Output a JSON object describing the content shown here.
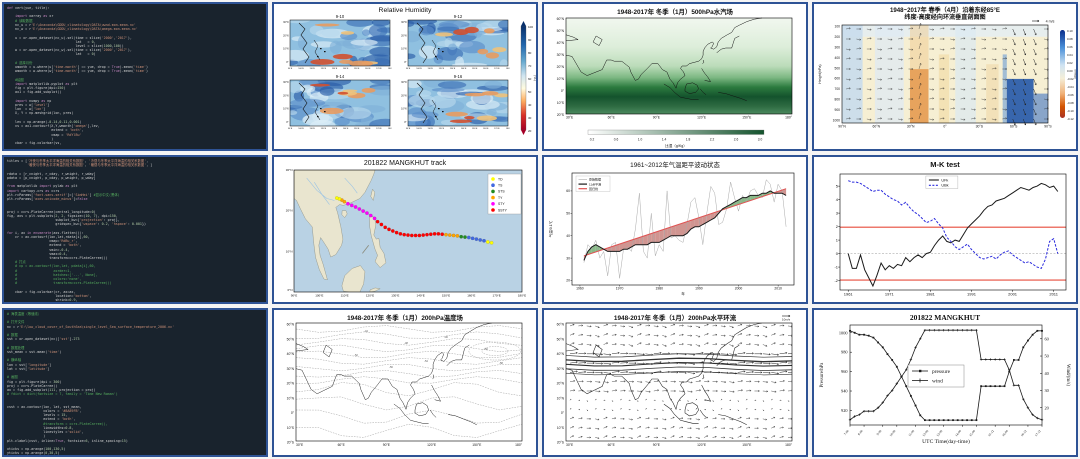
{
  "app": {
    "panel_border_color": "#2e5395",
    "code_background": "#19232d",
    "page_background": "#f5f5f5"
  },
  "code_panels": [
    {
      "name": "code-vertical-circulation-script",
      "lines": [
        "def vert(yue, title):",
        "",
        "    import xarray as xr",
        "    # 读取数据",
        "    nc_u = r'E:\\Anaconda\\GDDU_climatology\\DATA\\uwnd.mon.mean.nc'",
        "    nc_w = r'E:\\Anaconda\\GDDU_climatology\\DATA\\omega.mon.mean.nc'",
        "",
        "    u = xr.open_dataset(nc_u).sel(time = slice('2000','2017'),",
        "                                  lat   = 0,",
        "                                  level = slice(1000,100))",
        "    w = xr.open_dataset(nc_w).sel(time = slice('2000','2017'),",
        "                                  lat   = 0)",
        "",
        "    # 选择月份",
        "    umonth = u.where(u['time.month'] == yue, drop = True).mean('time')",
        "    wmonth = w.where(w['time.month'] == yue, drop = True).mean('time')",
        "",
        "    #绘图",
        "    import matplotlib.pyplot as plt",
        "    fig = plt.figure(dpi=150)",
        "    ax1 = fig.add_subplot()",
        "",
        "    import numpy as np",
        "    pres = w['level']",
        "    lon  = w['lon']",
        "    X, Y = np.meshgrid(lon, pres)",
        "",
        "    lev = np.arange(-0.14,0.11,0.001)",
        "    vs = ax1.contourf(X,Y,wmonth['omega'],lev,",
        "                      extend = 'both',",
        "                      cmap = 'RdYlBu'",
        "                      )",
        "    cbar = fig.colorbar(vs,"
      ]
    },
    {
      "name": "code-correlation-maps-script",
      "lines": [
        "titles = ['冷夜与冬季太平洋海温的相关系数图', '冷昼与冬季太平洋海温的相关系数图',",
        "          '暖夜与冬季太平洋海温的相关系数图', '暖昼与冬季太平洋海温的相关系数图', ]",
        "",
        "rdata = [r_cnight, r_cday, r_wnight, r_wday]",
        "pdata = [p_cnight, p_cday, p_wnight, p_wday]",
        "",
        "from matplotlib import pylab as plt",
        "import cartopy.crs as ccrs",
        "plt.rcParams['font.sans-serif']=['SimHei'] #显示中文(黑体)",
        "plt.rcParams['axes.unicode_minus']=False",
        "",
        "",
        "proj = ccrs.PlateCarree(central_longitude=0)",
        "fig, axs = plt.subplots(2, 2, figsize=(10, 7), dpi=150,",
        "                        subplot_kw={'projection': proj},",
        "                        gridspec_kw={'wspace': 0.2, 'hspace': 0.001})",
        "",
        "for i, ax in enumerate(axs.flatten()):",
        "    cr = ax.contourf(lon,lat,rdata[i],60,",
        "                     cmap='RdBu_r',",
        "                     extend = 'both',",
        "                     vmin=-0.4,",
        "                     vmax=0.4,",
        "                     transform=ccrs.PlateCarree())",
        "    # 打点",
        "    # cp = ax.contourf(lon,lat, pdata[i],60,",
        "    #                  zorder=1,",
        "    #                  hatches=['...', None],",
        "    #                  colors='none',",
        "    #                  transform=ccrs.PlateCarree())",
        "",
        "    cbar = fig.colorbar(cr, ax=ax,",
        "                        location='bottom',",
        "                        shrink=0.9,",
        "                        pad=0.1,",
        "                        aspect=50)"
      ]
    },
    {
      "name": "code-sst-contour-script",
      "lines": [
        "# 海表温度（等值线）",
        "",
        "# 打开文件",
        "nc = r'E:\\low_cloud_cover_of_SouthSea\\single_level_Sea_surface_temperature_2006.nc'",
        "",
        "# 数据",
        "sst = xr.open_dataset(nc)['sst']-273",
        "",
        "# 数据处理",
        "sst_mean = sst.mean('time')",
        "",
        "# 横纵轴",
        "lon = sst['longitude']",
        "lat = sst['latitude']",
        "",
        "# 画图",
        "fig = plt.figure(dpi = 300)",
        "proj = ccrs.PlateCarree()",
        "ax = fig.add_subplot(111, projection = proj)",
        "# fdict = dict(fontsize = 7, family = 'Time New Roman')",
        "",
        "",
        "csst = ax.contour(lon, lat, sst_mean,",
        "                  colors = '#8A89FB',",
        "                  levels = 15,",
        "                  extend = 'both',",
        "                  #transform = ccrs.PlateCarree(),",
        "                  linewidths=0.8,",
        "                  linestyles ='solid',",
        "                  )",
        "plt.clabel(csst, inline=True, fontsize=6, inline_spacing=15)",
        "",
        "xticks = np.arange(100,130,5)",
        "yticks = np.arange(0,30,5)"
      ]
    }
  ],
  "chart_data": [
    {
      "type": "heatmap",
      "title": "Relative Humidity",
      "subplots": [
        "9-10",
        "9-12",
        "9-14",
        "9-16"
      ],
      "lat_ticks": [
        "30°N",
        "20°N",
        "10°N",
        "0°"
      ],
      "lon_ticks": [
        "90°E",
        "100°E",
        "110°E",
        "120°E",
        "130°E",
        "140°E",
        "150°E",
        "160°E",
        "170°E",
        "180°"
      ],
      "colorbar": {
        "ticks": [
          100,
          90,
          80,
          70,
          60,
          50,
          40,
          30,
          20
        ],
        "label": "( % )",
        "colors": [
          "#08306b",
          "#2166ac",
          "#67a9cf",
          "#d1e5f0",
          "#fffbe0",
          "#fdae61",
          "#d73027",
          "#a50026"
        ]
      },
      "legend_position": "right"
    },
    {
      "type": "heatmap",
      "title": "1948-2017年 冬季（1月）500hPa水汽场",
      "lat_ticks": [
        "60°N",
        "50°N",
        "40°N",
        "30°N",
        "20°N",
        "10°N",
        "0°",
        "10°S",
        "20°S"
      ],
      "lon_ticks": [
        "30°E",
        "60°E",
        "90°E",
        "120°E",
        "150°E",
        "180°"
      ],
      "colorbar": {
        "ticks": [
          0.2,
          0.6,
          1.0,
          1.4,
          1.8,
          2.2,
          2.6,
          3.0
        ],
        "label": "比湿（g/Kg）",
        "colors": [
          "#ffffff",
          "#14532d"
        ]
      }
    },
    {
      "type": "heatmap",
      "title_line1": "1948~2017年 春季（4月）沿着东经85°E",
      "title_line2": "纬度-高度经向环流垂直剖面图",
      "ylabel": "Height(hPa)",
      "y_ticks": [
        100,
        200,
        300,
        400,
        500,
        600,
        700,
        800,
        900,
        1000
      ],
      "x_ticks": [
        "90°N",
        "60°N",
        "30°N",
        "0°",
        "30°S",
        "60°S",
        "90°S"
      ],
      "quiver_key": "4 m/s",
      "colorbar": {
        "ticks": [
          0.1,
          0.08,
          0.06,
          0.04,
          0.02,
          0.0,
          -0.02,
          -0.04,
          -0.06,
          -0.08,
          -0.1,
          -0.12
        ],
        "label": "omega",
        "colors": [
          "#0a2e8c",
          "#4a90d9",
          "#cfe3f2",
          "#f5efd8",
          "#f0b27a",
          "#d35400",
          "#a93226"
        ]
      }
    },
    {
      "type": "scatter",
      "title": "201822 MANGKHUT track",
      "x_ticks": [
        "90°E",
        "100°E",
        "110°E",
        "120°E",
        "130°E",
        "140°E",
        "150°E",
        "160°E",
        "170°E",
        "180°E"
      ],
      "y_ticks": [
        "0°N",
        "10°N",
        "20°N",
        "30°N"
      ],
      "legend": [
        {
          "label": "TD",
          "color": "#ffff00"
        },
        {
          "label": "TS",
          "color": "#4169e1"
        },
        {
          "label": "STS",
          "color": "#228b22"
        },
        {
          "label": "TY",
          "color": "#ffa500"
        },
        {
          "label": "STY",
          "color": "#ff00ff"
        },
        {
          "label": "SSTY",
          "color": "#ff0000"
        }
      ],
      "points": [
        [
          168,
          12.1,
          "TD"
        ],
        [
          166.5,
          12.3,
          "TD"
        ],
        [
          165,
          12.6,
          "TS"
        ],
        [
          163.5,
          12.8,
          "TS"
        ],
        [
          162,
          13,
          "TS"
        ],
        [
          160.5,
          13.2,
          "TS"
        ],
        [
          159,
          13.4,
          "TS"
        ],
        [
          157.5,
          13.5,
          "STS"
        ],
        [
          156,
          13.6,
          "STS"
        ],
        [
          154.5,
          13.8,
          "TY"
        ],
        [
          153,
          13.9,
          "TY"
        ],
        [
          151.5,
          14,
          "TY"
        ],
        [
          150,
          14.1,
          "TY"
        ],
        [
          148.5,
          14.2,
          "SSTY"
        ],
        [
          147,
          14.3,
          "SSTY"
        ],
        [
          145.5,
          14.3,
          "SSTY"
        ],
        [
          144,
          14.2,
          "SSTY"
        ],
        [
          142.5,
          14.1,
          "SSTY"
        ],
        [
          141,
          14,
          "SSTY"
        ],
        [
          139.5,
          13.9,
          "SSTY"
        ],
        [
          138,
          13.9,
          "SSTY"
        ],
        [
          136.5,
          13.9,
          "SSTY"
        ],
        [
          135,
          14,
          "SSTY"
        ],
        [
          133.5,
          14.1,
          "SSTY"
        ],
        [
          132,
          14.3,
          "SSTY"
        ],
        [
          130.5,
          14.6,
          "SSTY"
        ],
        [
          129,
          15,
          "SSTY"
        ],
        [
          127.5,
          15.4,
          "SSTY"
        ],
        [
          126,
          15.9,
          "SSTY"
        ],
        [
          124.5,
          16.6,
          "SSTY"
        ],
        [
          123,
          17.3,
          "SSTY"
        ],
        [
          121.8,
          18.1,
          "STY"
        ],
        [
          120.3,
          18.8,
          "STY"
        ],
        [
          118.8,
          19.4,
          "STY"
        ],
        [
          117.3,
          19.9,
          "STY"
        ],
        [
          115.8,
          20.4,
          "STY"
        ],
        [
          114.3,
          20.9,
          "STY"
        ],
        [
          112.8,
          21.3,
          "STY"
        ],
        [
          111.3,
          21.7,
          "STY"
        ],
        [
          109.9,
          22.2,
          "TY"
        ],
        [
          108.9,
          22.6,
          "TY"
        ],
        [
          107.9,
          22.9,
          "TD"
        ],
        [
          106.9,
          23.1,
          "TD"
        ]
      ]
    },
    {
      "type": "line",
      "title": "1961~2012年气温距平波动状态",
      "xlabel": "年",
      "ylabel": "气温/0.1℃",
      "x_ticks": [
        1960,
        1970,
        1980,
        1990,
        2000,
        2010
      ],
      "y_ticks": [
        20,
        30,
        40,
        50,
        60
      ],
      "ylim": [
        18,
        68
      ],
      "legend": [
        "原始数据",
        "11点平滑",
        "回归线"
      ],
      "year_start": 1961,
      "original": [
        28,
        36,
        34,
        38,
        30,
        33,
        22,
        36,
        37,
        21,
        34,
        35,
        33,
        43,
        59,
        33,
        30,
        50,
        31,
        36,
        33,
        60,
        39,
        40,
        38,
        37,
        45,
        55,
        57,
        48,
        36,
        50,
        62,
        59,
        45,
        46,
        52,
        64,
        57,
        51,
        58,
        55,
        60,
        61,
        58,
        57,
        65,
        63,
        55,
        63,
        60,
        44
      ],
      "smoothed": [
        29,
        33,
        35,
        36,
        35,
        34,
        33,
        33,
        33,
        33,
        34,
        34,
        35,
        36,
        36,
        36,
        36,
        37,
        37,
        37,
        38,
        39,
        40,
        40,
        40,
        40,
        41,
        43,
        44,
        44,
        45,
        46,
        47,
        48,
        50,
        52,
        53,
        54,
        55,
        56,
        57,
        57,
        58,
        58,
        58,
        59,
        59,
        60,
        59,
        59,
        59,
        58
      ],
      "regression_endpoints": [
        31,
        61
      ],
      "colors": {
        "original": "#aaaaaa",
        "smoothed": "#1a1a1a",
        "regression": "#e05252",
        "fill_above": "#6aa86a",
        "fill_below": "#c47a76"
      }
    },
    {
      "type": "line",
      "title": "M-K test",
      "x_ticks": [
        1961,
        1971,
        1981,
        1991,
        2001,
        2011
      ],
      "y_ticks": [
        -2,
        -1,
        0,
        1,
        2,
        3,
        4,
        5
      ],
      "year_start": 1961,
      "significance_level": 1.96,
      "legend": [
        "UFk",
        "UBk"
      ],
      "UFk": [
        0.0,
        -1.1,
        -1.1,
        -0.1,
        -1.2,
        -1.8,
        -2.4,
        -1.6,
        -0.7,
        -1.2,
        -0.9,
        -1.1,
        -0.8,
        -0.9,
        -0.3,
        -0.6,
        -0.3,
        -0.1,
        -0.3,
        0.0,
        0.1,
        0.6,
        1.0,
        1.3,
        0.9,
        0.8,
        1.0,
        0.9,
        1.4,
        1.9,
        2.2,
        2.5,
        2.8,
        3.2,
        3.5,
        3.6,
        3.9,
        4.0,
        4.1,
        4.3,
        4.5,
        4.7,
        4.9,
        4.8,
        4.7,
        4.9,
        5.0,
        5.2,
        5.1,
        4.9,
        5.0,
        4.6
      ],
      "UBk": [
        5.4,
        5.3,
        5.3,
        5.2,
        5.0,
        4.8,
        4.6,
        4.7,
        4.7,
        4.4,
        4.2,
        4.0,
        3.9,
        3.6,
        3.8,
        3.4,
        3.1,
        2.9,
        2.6,
        2.3,
        2.4,
        2.6,
        2.2,
        1.9,
        1.2,
        0.9,
        0.5,
        0.3,
        0.5,
        0.7,
        0.3,
        0.0,
        -0.3,
        -0.4,
        -0.3,
        -0.2,
        -0.4,
        -0.1,
        0.1,
        0.2,
        -0.1,
        -0.3,
        -0.5,
        -0.7,
        -0.6,
        -0.8,
        -1.0,
        -1.1,
        -0.4,
        0.9,
        1.1,
        0.0
      ],
      "colors": {
        "UFk": "#1a1a1a",
        "UBk": "#2b2bdd",
        "significance": "#e74c3c"
      }
    },
    {
      "type": "heatmap",
      "title": "1948-2017年 冬季（1月）200hPa温度场",
      "lat_ticks": [
        "60°N",
        "50°N",
        "40°N",
        "30°N",
        "20°N",
        "10°N",
        "0°",
        "10°S",
        "20°S"
      ],
      "lon_ticks": [
        "30°E",
        "60°E",
        "90°E",
        "120°E",
        "150°E",
        "180°"
      ],
      "contour_labels": [
        -44,
        -46,
        -48,
        -50,
        -52,
        -54,
        -56,
        -58
      ]
    },
    {
      "type": "heatmap",
      "title": "1948-2017年 冬季（1月）200hPa水平环流",
      "lat_ticks": [
        "60°N",
        "50°N",
        "40°N",
        "30°N",
        "20°N",
        "10°N",
        "0°",
        "10°S",
        "20°S"
      ],
      "lon_ticks": [
        "30°E",
        "60°E",
        "90°E",
        "120°E",
        "150°E",
        "180°"
      ],
      "quiver_key": "10m/s"
    },
    {
      "type": "line",
      "title": "201822 MANGKHUT",
      "xlabel": "UTC Time(day-time)",
      "ylabel_left": "Pressure/hPa",
      "ylabel_right": "Wind/(m/s)",
      "x_tick_labels": [
        "7-00",
        "8-00",
        "9-00",
        "10-00",
        "11-00",
        "12-00",
        "13-00",
        "14-00",
        "15-00",
        "15-12",
        "16-00",
        "16-12",
        "17-12"
      ],
      "y_ticks_left": [
        920,
        940,
        960,
        980,
        1000
      ],
      "y_ticks_right": [
        20,
        30,
        40,
        50,
        60
      ],
      "legend": [
        "pressure",
        "wind"
      ],
      "pressure": [
        1002,
        1000,
        998,
        998,
        997,
        995,
        990,
        985,
        978,
        972,
        965,
        955,
        945,
        935,
        925,
        915,
        910,
        910,
        910,
        910,
        910,
        910,
        910,
        910,
        910,
        910,
        910,
        910,
        945,
        945,
        945,
        945,
        945,
        945,
        960,
        972,
        972,
        985,
        992,
        998,
        1002,
        1002
      ],
      "wind": [
        13,
        15,
        16,
        18,
        18,
        18,
        20,
        23,
        27,
        30,
        34,
        38,
        42,
        48,
        55,
        60,
        65,
        65,
        65,
        65,
        65,
        65,
        65,
        65,
        65,
        65,
        65,
        65,
        48,
        48,
        48,
        48,
        48,
        48,
        42,
        33,
        33,
        25,
        20,
        16,
        14,
        13
      ]
    }
  ]
}
